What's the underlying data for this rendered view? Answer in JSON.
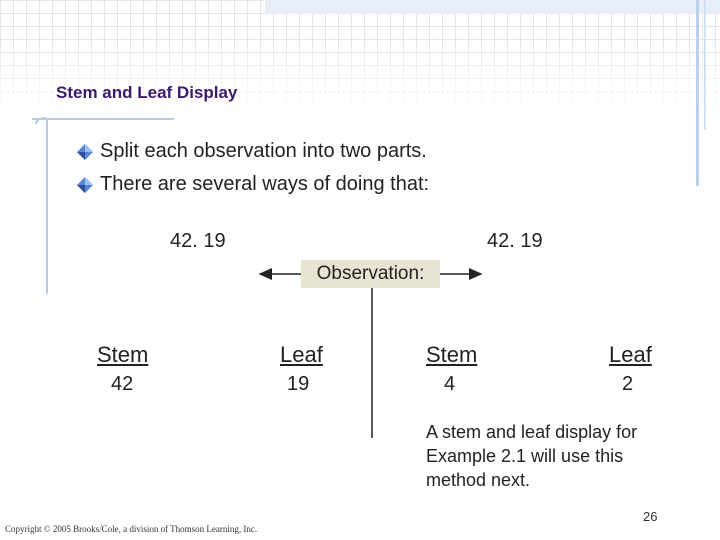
{
  "slide": {
    "title": "Stem and Leaf Display",
    "bullets": [
      {
        "text": "Split each observation into two parts.",
        "icon": "diamond-bullet-icon"
      },
      {
        "text": "There are several ways of doing that:",
        "icon": "diamond-bullet-icon"
      }
    ],
    "example_left": "42. 19",
    "example_right": "42. 19",
    "observation_label": "Observation:",
    "left_split": {
      "stem_label": "Stem",
      "stem_value": "42",
      "leaf_label": "Leaf",
      "leaf_value": "19"
    },
    "right_split": {
      "stem_label": "Stem",
      "stem_value": "4",
      "leaf_label": "Leaf",
      "leaf_value": "2"
    },
    "note": "A stem and leaf display for Example 2.1 will use this method next.",
    "page_number": "26",
    "copyright": "Copyright © 2005 Brooks/Cole, a division of Thomson Learning, Inc."
  },
  "colors": {
    "title": "#3a1a6e",
    "accent_line": "#b8c9e4",
    "label_box": "#e7e5d2",
    "bullet": "#3b6bc9"
  }
}
